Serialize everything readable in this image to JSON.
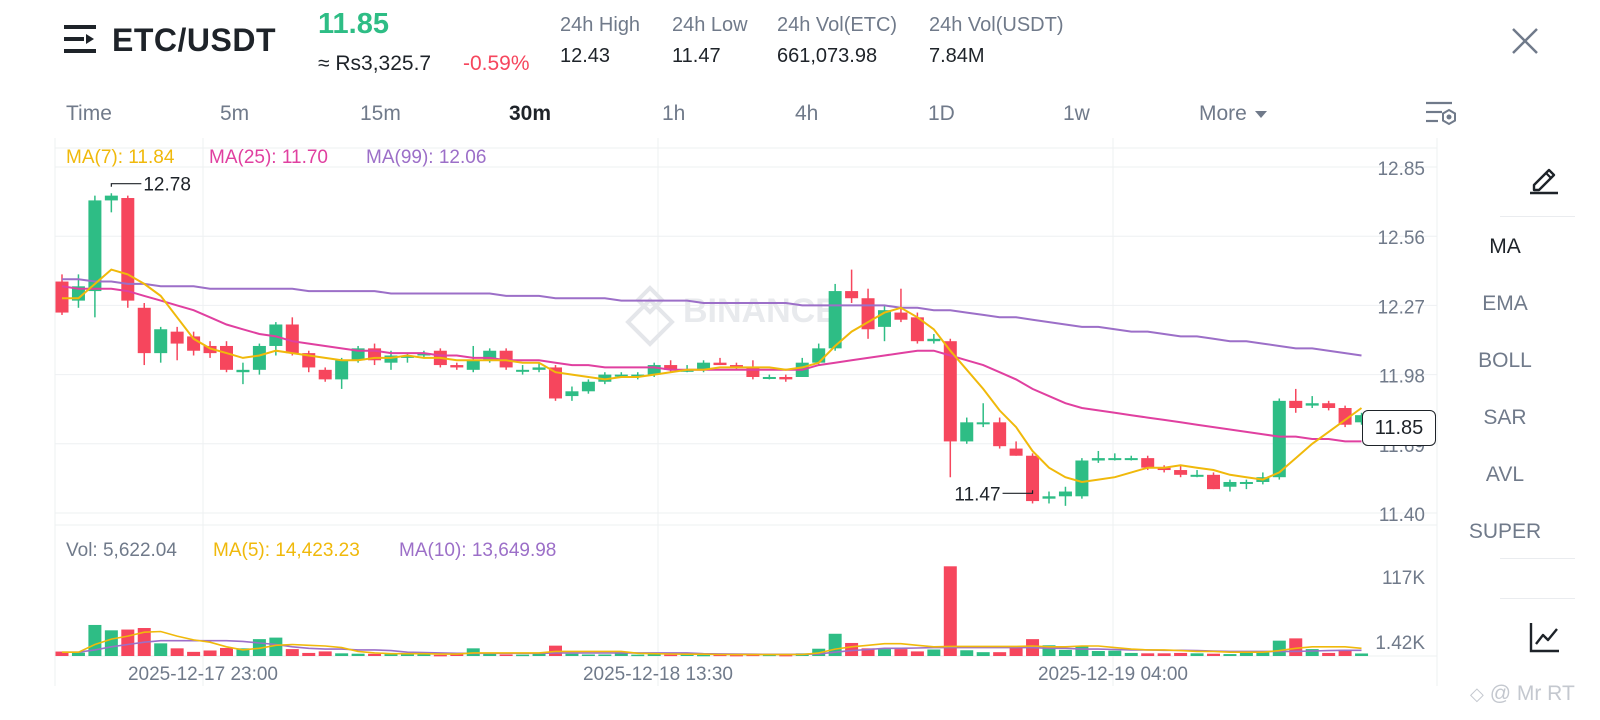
{
  "header": {
    "menu_icon": "hamburger-menu-icon",
    "pair": "ETC/USDT",
    "last_price": "11.85",
    "approx_price": "≈ Rs3,325.7",
    "change_pct": "-0.59%",
    "stats": [
      {
        "label": "24h High",
        "value": "12.43"
      },
      {
        "label": "24h Low",
        "value": "11.47"
      },
      {
        "label": "24h Vol(ETC)",
        "value": "661,073.98"
      },
      {
        "label": "24h Vol(USDT)",
        "value": "7.84M"
      }
    ],
    "close_icon": "close-icon"
  },
  "timeframes": {
    "items": [
      "Time",
      "5m",
      "15m",
      "30m",
      "1h",
      "4h",
      "1D",
      "1w"
    ],
    "active": "30m",
    "more_label": "More",
    "settings_icon": "chart-settings-icon"
  },
  "legend": {
    "ma7": "MA(7): 11.84",
    "ma25": "MA(25): 11.70",
    "ma99": "MA(99): 12.06"
  },
  "volume_legend": {
    "vol": "Vol: 5,622.04",
    "ma5": "MA(5): 14,423.23",
    "ma10": "MA(10): 13,649.98"
  },
  "sidebar": {
    "draw_icon": "pencil-draw-icon",
    "indicators": [
      "MA",
      "EMA",
      "BOLL",
      "SAR",
      "AVL",
      "SUPER"
    ],
    "active_indicator": "MA",
    "chart_type_icon": "line-chart-icon"
  },
  "current_price_tag": "11.85",
  "watermark_center": "BINANCE",
  "watermark_corner": "@ Mr RT",
  "colors": {
    "up": "#2ebd85",
    "down": "#f6465d",
    "ma7": "#f0b90b",
    "ma25": "#e040a0",
    "ma99": "#9c6fc8"
  },
  "chart_data": {
    "type": "candlestick",
    "title": "",
    "price_ticks": [
      "12.85",
      "12.56",
      "12.27",
      "11.98",
      "11.69",
      "11.40"
    ],
    "volume_ticks": [
      "117K",
      "1.42K"
    ],
    "x_ticks": [
      "2025-12-17 23:00",
      "2025-12-18 13:30",
      "2025-12-19 04:00"
    ],
    "high_marker": {
      "label": "12.78",
      "value": 12.78
    },
    "low_marker": {
      "label": "11.47",
      "value": 11.47
    },
    "price_range": [
      11.38,
      12.95
    ],
    "volume_range": [
      0,
      120000
    ],
    "candles": [
      [
        12.37,
        12.24,
        12.4,
        12.23
      ],
      [
        12.29,
        12.35,
        12.4,
        12.26
      ],
      [
        12.33,
        12.71,
        12.73,
        12.22
      ],
      [
        12.71,
        12.73,
        12.74,
        12.66
      ],
      [
        12.72,
        12.29,
        12.73,
        12.26
      ],
      [
        12.26,
        12.07,
        12.28,
        12.02
      ],
      [
        12.07,
        12.17,
        12.18,
        12.03
      ],
      [
        12.16,
        12.11,
        12.18,
        12.04
      ],
      [
        12.14,
        12.08,
        12.16,
        12.06
      ],
      [
        12.1,
        12.07,
        12.12,
        12.05
      ],
      [
        12.1,
        12.0,
        12.12,
        11.99
      ],
      [
        11.99,
        12.0,
        12.03,
        11.94
      ],
      [
        12.0,
        12.1,
        12.11,
        11.98
      ],
      [
        12.1,
        12.19,
        12.2,
        12.06
      ],
      [
        12.19,
        12.07,
        12.22,
        12.06
      ],
      [
        12.07,
        12.01,
        12.08,
        11.99
      ],
      [
        12.0,
        11.96,
        12.01,
        11.95
      ],
      [
        11.96,
        12.04,
        12.05,
        11.92
      ],
      [
        12.04,
        12.09,
        12.1,
        12.03
      ],
      [
        12.09,
        12.04,
        12.11,
        12.02
      ],
      [
        12.03,
        12.06,
        12.08,
        12.0
      ],
      [
        12.05,
        12.06,
        12.07,
        12.03
      ],
      [
        12.06,
        12.07,
        12.08,
        12.05
      ],
      [
        12.08,
        12.02,
        12.09,
        12.01
      ],
      [
        12.02,
        12.01,
        12.03,
        12.0
      ],
      [
        12.0,
        12.04,
        12.1,
        11.99
      ],
      [
        12.04,
        12.08,
        12.09,
        12.03
      ],
      [
        12.08,
        12.01,
        12.09,
        12.0
      ],
      [
        12.0,
        12.0,
        12.02,
        11.98
      ],
      [
        12.0,
        12.01,
        12.03,
        11.99
      ],
      [
        12.01,
        11.88,
        12.02,
        11.87
      ],
      [
        11.89,
        11.91,
        11.93,
        11.87
      ],
      [
        11.91,
        11.95,
        11.96,
        11.9
      ],
      [
        11.95,
        11.98,
        11.99,
        11.94
      ],
      [
        11.98,
        11.98,
        11.99,
        11.97
      ],
      [
        11.98,
        11.98,
        11.99,
        11.96
      ],
      [
        11.98,
        12.02,
        12.03,
        11.97
      ],
      [
        12.02,
        12.0,
        12.04,
        11.99
      ],
      [
        12.0,
        12.0,
        12.02,
        11.99
      ],
      [
        12.0,
        12.03,
        12.04,
        11.99
      ],
      [
        12.03,
        12.02,
        12.05,
        12.02
      ],
      [
        12.02,
        12.01,
        12.03,
        12.0
      ],
      [
        12.01,
        11.97,
        12.04,
        11.96
      ],
      [
        11.97,
        11.97,
        11.98,
        11.96
      ],
      [
        11.97,
        11.96,
        11.98,
        11.95
      ],
      [
        11.97,
        12.03,
        12.05,
        11.97
      ],
      [
        12.03,
        12.09,
        12.11,
        12.02
      ],
      [
        12.09,
        12.33,
        12.36,
        12.08
      ],
      [
        12.33,
        12.3,
        12.42,
        12.28
      ],
      [
        12.3,
        12.17,
        12.34,
        12.13
      ],
      [
        12.18,
        12.25,
        12.27,
        12.12
      ],
      [
        12.24,
        12.21,
        12.34,
        12.2
      ],
      [
        12.22,
        12.12,
        12.24,
        12.11
      ],
      [
        12.12,
        12.13,
        12.15,
        12.11
      ],
      [
        12.12,
        11.7,
        12.13,
        11.55
      ],
      [
        11.7,
        11.78,
        11.8,
        11.69
      ],
      [
        11.78,
        11.78,
        11.86,
        11.76
      ],
      [
        11.78,
        11.68,
        11.8,
        11.67
      ],
      [
        11.67,
        11.64,
        11.7,
        11.64
      ],
      [
        11.64,
        11.45,
        11.65,
        11.44
      ],
      [
        11.46,
        11.47,
        11.49,
        11.44
      ],
      [
        11.47,
        11.49,
        11.51,
        11.43
      ],
      [
        11.47,
        11.62,
        11.63,
        11.46
      ],
      [
        11.62,
        11.63,
        11.66,
        11.61
      ],
      [
        11.63,
        11.63,
        11.65,
        11.62
      ],
      [
        11.63,
        11.63,
        11.64,
        11.62
      ],
      [
        11.63,
        11.59,
        11.64,
        11.58
      ],
      [
        11.59,
        11.58,
        11.6,
        11.57
      ],
      [
        11.58,
        11.56,
        11.6,
        11.55
      ],
      [
        11.56,
        11.56,
        11.58,
        11.55
      ],
      [
        11.56,
        11.5,
        11.57,
        11.5
      ],
      [
        11.51,
        11.53,
        11.54,
        11.49
      ],
      [
        11.53,
        11.53,
        11.54,
        11.5
      ],
      [
        11.53,
        11.55,
        11.57,
        11.52
      ],
      [
        11.55,
        11.87,
        11.88,
        11.54
      ],
      [
        11.87,
        11.84,
        11.92,
        11.82
      ],
      [
        11.85,
        11.86,
        11.89,
        11.84
      ],
      [
        11.86,
        11.84,
        11.87,
        11.83
      ],
      [
        11.84,
        11.77,
        11.85,
        11.76
      ],
      [
        11.78,
        11.81,
        11.82,
        11.77
      ]
    ],
    "volumes": [
      5800,
      4400,
      40500,
      33500,
      34500,
      36500,
      16500,
      10000,
      5400,
      7200,
      10500,
      10000,
      22000,
      24000,
      9000,
      4000,
      6000,
      3500,
      3000,
      2800,
      2500,
      3000,
      2000,
      1500,
      2800,
      10000,
      4200,
      2000,
      1800,
      3500,
      13500,
      3000,
      2000,
      2000,
      5000,
      1800,
      2500,
      1800,
      2000,
      1600,
      1800,
      1500,
      1800,
      1800,
      1500,
      3500,
      9500,
      29000,
      17000,
      10000,
      9000,
      9000,
      6000,
      8500,
      117000,
      7500,
      5000,
      5000,
      12000,
      22000,
      14000,
      8000,
      12500,
      6500,
      7000,
      4000,
      3500,
      3500,
      4000,
      3500,
      3000,
      2500,
      4000,
      4500,
      20000,
      23000,
      9000,
      4000,
      8000,
      3300
    ],
    "ma7": [
      12.3,
      12.3,
      12.36,
      12.42,
      12.4,
      12.36,
      12.31,
      12.22,
      12.13,
      12.09,
      12.07,
      12.05,
      12.06,
      12.08,
      12.07,
      12.06,
      12.05,
      12.04,
      12.04,
      12.05,
      12.05,
      12.06,
      12.05,
      12.05,
      12.04,
      12.04,
      12.04,
      12.04,
      12.03,
      12.03,
      11.99,
      11.98,
      11.97,
      11.96,
      11.97,
      11.97,
      11.98,
      11.99,
      12.0,
      12.0,
      12.01,
      12.01,
      12.01,
      12.01,
      12.0,
      12.01,
      12.03,
      12.1,
      12.16,
      12.2,
      12.24,
      12.26,
      12.22,
      12.17,
      12.08,
      12.0,
      11.92,
      11.83,
      11.76,
      11.66,
      11.59,
      11.55,
      11.53,
      11.54,
      11.55,
      11.57,
      11.59,
      11.59,
      11.6,
      11.59,
      11.58,
      11.56,
      11.55,
      11.54,
      11.57,
      11.63,
      11.69,
      11.74,
      11.79,
      11.84
    ],
    "ma25": [
      12.35,
      12.34,
      12.34,
      12.34,
      12.33,
      12.31,
      12.29,
      12.27,
      12.25,
      12.22,
      12.19,
      12.17,
      12.15,
      12.14,
      12.12,
      12.11,
      12.1,
      12.09,
      12.08,
      12.08,
      12.07,
      12.07,
      12.07,
      12.06,
      12.06,
      12.05,
      12.05,
      12.04,
      12.04,
      12.04,
      12.03,
      12.02,
      12.02,
      12.01,
      12.01,
      12.01,
      12.01,
      12.0,
      12.0,
      12.0,
      12.0,
      12.0,
      12.0,
      12.0,
      12.0,
      12.0,
      12.02,
      12.03,
      12.04,
      12.05,
      12.06,
      12.07,
      12.08,
      12.08,
      12.06,
      12.04,
      12.02,
      11.99,
      11.96,
      11.92,
      11.89,
      11.86,
      11.84,
      11.83,
      11.82,
      11.81,
      11.8,
      11.79,
      11.78,
      11.77,
      11.76,
      11.75,
      11.74,
      11.73,
      11.72,
      11.72,
      11.71,
      11.71,
      11.7,
      11.7
    ],
    "ma99": [
      12.38,
      12.38,
      12.37,
      12.37,
      12.36,
      12.36,
      12.35,
      12.35,
      12.35,
      12.34,
      12.34,
      12.34,
      12.34,
      12.34,
      12.34,
      12.33,
      12.33,
      12.33,
      12.33,
      12.33,
      12.32,
      12.32,
      12.32,
      12.32,
      12.32,
      12.32,
      12.32,
      12.31,
      12.31,
      12.31,
      12.3,
      12.3,
      12.3,
      12.3,
      12.29,
      12.29,
      12.29,
      12.29,
      12.29,
      12.28,
      12.28,
      12.28,
      12.28,
      12.28,
      12.28,
      12.27,
      12.27,
      12.27,
      12.27,
      12.27,
      12.27,
      12.26,
      12.26,
      12.25,
      12.25,
      12.24,
      12.23,
      12.22,
      12.22,
      12.21,
      12.2,
      12.19,
      12.18,
      12.18,
      12.17,
      12.16,
      12.16,
      12.15,
      12.14,
      12.14,
      12.13,
      12.12,
      12.12,
      12.11,
      12.1,
      12.09,
      12.09,
      12.08,
      12.07,
      12.06
    ],
    "vol_ma5": [
      5000,
      5000,
      15000,
      22000,
      26000,
      31000,
      32000,
      26000,
      21000,
      18000,
      12000,
      8000,
      10000,
      14000,
      15000,
      14000,
      13000,
      11000,
      6000,
      4000,
      3000,
      3000,
      3000,
      2500,
      2500,
      4000,
      4000,
      4000,
      4000,
      4000,
      6000,
      6000,
      6000,
      6000,
      6000,
      3500,
      3000,
      2600,
      2300,
      2300,
      2000,
      1800,
      1800,
      1800,
      1800,
      2000,
      4000,
      9000,
      12000,
      14000,
      16000,
      16000,
      14000,
      12000,
      12500,
      12500,
      12500,
      12500,
      12500,
      13000,
      12000,
      12000,
      13000,
      13000,
      11000,
      9000,
      8000,
      8000,
      7000,
      6000,
      6000,
      5000,
      5000,
      5000,
      7000,
      10000,
      12000,
      12000,
      12000,
      10000
    ],
    "vol_ma10": [
      5000,
      5000,
      8000,
      12000,
      15000,
      18000,
      20000,
      20000,
      20000,
      20000,
      20000,
      19000,
      17000,
      15000,
      12000,
      10000,
      9000,
      9000,
      8000,
      8000,
      7000,
      5000,
      4500,
      4000,
      3500,
      3500,
      3500,
      3500,
      3500,
      3500,
      4000,
      4000,
      4000,
      4000,
      4000,
      4000,
      4000,
      4000,
      4000,
      3000,
      2800,
      2600,
      2400,
      2200,
      2200,
      2200,
      2800,
      5000,
      7000,
      8500,
      10000,
      10000,
      10500,
      11000,
      11000,
      11000,
      11000,
      11000,
      11000,
      11000,
      10000,
      10000,
      9000,
      9000,
      8500,
      8000,
      8000,
      7500,
      7500,
      7000,
      6500,
      6000,
      6000,
      6000,
      6000,
      6000,
      6500,
      7000,
      7500,
      7500
    ]
  }
}
